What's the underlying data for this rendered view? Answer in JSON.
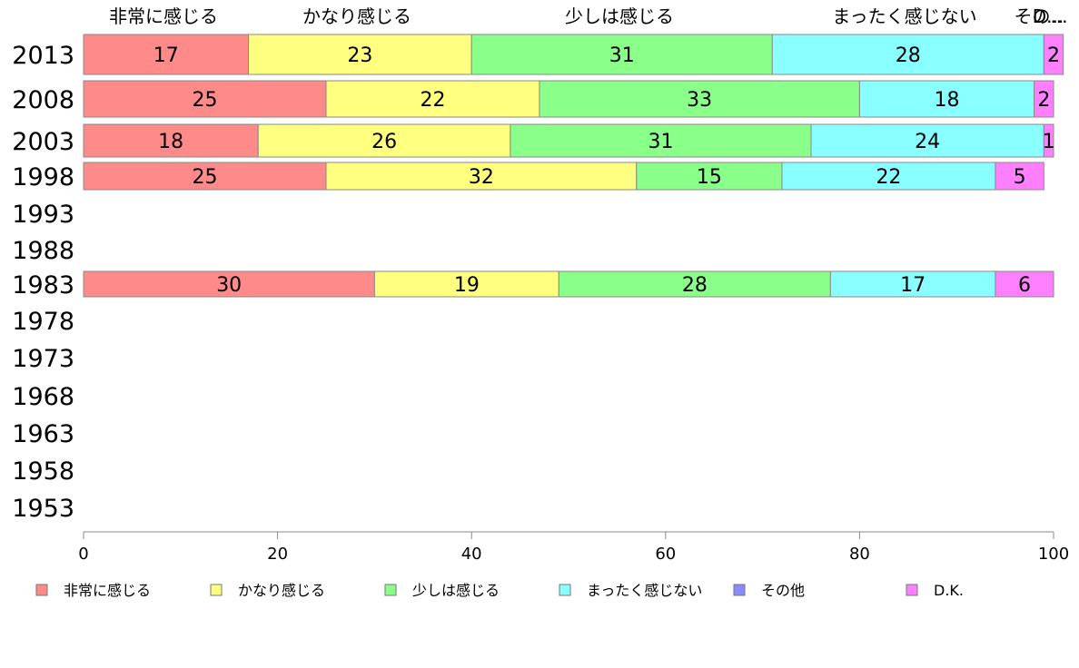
{
  "chart_data": {
    "type": "bar",
    "orientation": "horizontal",
    "stacked": true,
    "categories": [
      "2013",
      "2008",
      "2003",
      "1998",
      "1993",
      "1988",
      "1983",
      "1978",
      "1973",
      "1968",
      "1963",
      "1958",
      "1953"
    ],
    "series": [
      {
        "name": "非常に感じる",
        "color": "#ff8a8a",
        "values": [
          17,
          25,
          18,
          25,
          null,
          null,
          30,
          null,
          null,
          null,
          null,
          null,
          null
        ]
      },
      {
        "name": "かなり感じる",
        "color": "#ffff80",
        "values": [
          23,
          22,
          26,
          32,
          null,
          null,
          19,
          null,
          null,
          null,
          null,
          null,
          null
        ]
      },
      {
        "name": "少しは感じる",
        "color": "#8aff8a",
        "values": [
          31,
          33,
          31,
          15,
          null,
          null,
          28,
          null,
          null,
          null,
          null,
          null,
          null
        ]
      },
      {
        "name": "まったく感じない",
        "color": "#8affff",
        "values": [
          28,
          18,
          24,
          22,
          null,
          null,
          17,
          null,
          null,
          null,
          null,
          null,
          null
        ]
      },
      {
        "name": "その他",
        "color": "#8a8aff",
        "values": [
          0,
          0,
          0,
          0,
          null,
          null,
          0,
          null,
          null,
          null,
          null,
          null,
          null
        ]
      },
      {
        "name": "D.K.",
        "color": "#ff80ff",
        "values": [
          2,
          2,
          1,
          5,
          null,
          null,
          6,
          null,
          null,
          null,
          null,
          null,
          null
        ]
      }
    ],
    "top_labels": [
      "非常に感じる",
      "かなり感じる",
      "少しは感じる",
      "まったく感じない",
      "その...",
      "D..."
    ],
    "x_ticks": [
      "0",
      "20",
      "40",
      "60",
      "80",
      "100"
    ],
    "xlim": [
      0,
      100
    ],
    "grid": false,
    "legend_position": "bottom"
  }
}
